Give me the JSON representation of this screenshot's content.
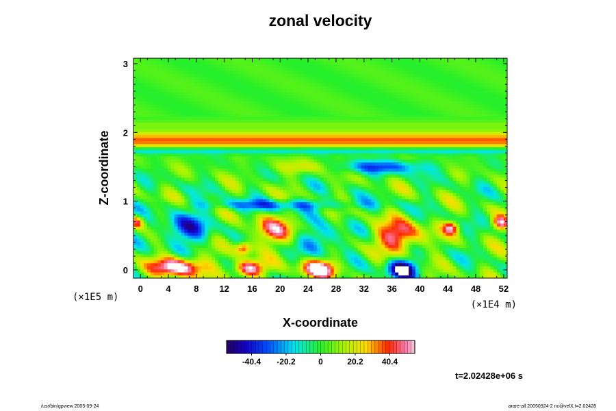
{
  "chart_data": {
    "type": "heatmap",
    "title": "zonal velocity",
    "xlabel": "X-coordinate",
    "ylabel": "Z-coordinate",
    "x_unit": "(×1E4 m)",
    "y_unit": "(×1E5 m)",
    "xlim": [
      -1,
      52.5
    ],
    "ylim": [
      -0.12,
      3.08
    ],
    "x_ticks": [
      "0",
      "4",
      "8",
      "12",
      "16",
      "20",
      "24",
      "28",
      "32",
      "36",
      "40",
      "44",
      "48",
      "52"
    ],
    "y_ticks": [
      "0",
      "1",
      "2",
      "3"
    ],
    "colorbar": {
      "min": -55,
      "max": 55,
      "ticks": [
        "-40.4",
        "-20.2",
        "0",
        "20.2",
        "40.4"
      ],
      "tick_values": [
        -40.4,
        -20.2,
        0,
        20.2,
        40.4
      ]
    },
    "time_label": "t=2.02428e+06 s",
    "features": [
      {
        "kind": "band",
        "z_center": 1.89,
        "z_halfwidth": 0.12,
        "value": 34
      },
      {
        "kind": "band",
        "z_center": 2.12,
        "z_halfwidth": 0.05,
        "value": 6
      },
      {
        "kind": "band",
        "z_center": 1.74,
        "z_halfwidth": 0.05,
        "value": -22
      },
      {
        "kind": "blob",
        "x": 37,
        "z": 0.5,
        "sx": 3.4,
        "sz": 0.22,
        "value": 48
      },
      {
        "kind": "blob",
        "x": 19,
        "z": 0.58,
        "sx": 3.2,
        "sz": 0.2,
        "value": 36
      },
      {
        "kind": "blob",
        "x": 5.5,
        "z": 0.05,
        "sx": 3.8,
        "sz": 0.14,
        "value": 60
      },
      {
        "kind": "blob",
        "x": 15.5,
        "z": 0.02,
        "sx": 2.2,
        "sz": 0.12,
        "value": 60
      },
      {
        "kind": "blob",
        "x": 25.5,
        "z": 0.02,
        "sx": 2.6,
        "sz": 0.13,
        "value": 60
      },
      {
        "kind": "blob",
        "x": 14.8,
        "z": 0.32,
        "sx": 1.1,
        "sz": 0.09,
        "value": 42
      },
      {
        "kind": "blob",
        "x": 37.5,
        "z": 0.02,
        "sx": 2.2,
        "sz": 0.14,
        "value": -60
      },
      {
        "kind": "blob",
        "x": 6.5,
        "z": 0.6,
        "sx": 3.5,
        "sz": 0.22,
        "value": -35
      },
      {
        "kind": "blob",
        "x": 26,
        "z": 0.45,
        "sx": 2.8,
        "sz": 0.2,
        "value": -28
      },
      {
        "kind": "blob",
        "x": 34,
        "z": 1.5,
        "sx": 7,
        "sz": 0.1,
        "value": -32
      },
      {
        "kind": "blob",
        "x": 24,
        "z": 1.5,
        "sx": 5,
        "sz": 0.1,
        "value": 18
      },
      {
        "kind": "blob",
        "x": 20,
        "z": 0.95,
        "sx": 12,
        "sz": 0.08,
        "value": -28
      },
      {
        "kind": "blob",
        "x": 44.5,
        "z": 0.62,
        "sx": 1.1,
        "sz": 0.09,
        "value": 44
      },
      {
        "kind": "blob",
        "x": 51.5,
        "z": 0.68,
        "sx": 1.2,
        "sz": 0.1,
        "value": 44
      },
      {
        "kind": "blob",
        "x": -0.5,
        "z": 0.7,
        "sx": 1.0,
        "sz": 0.09,
        "value": 40
      }
    ]
  },
  "footer": {
    "left": "/usr/bin/gpview 2005-09-24",
    "right": "arare-all 20050924-2 nc@velX,t=2.02428"
  }
}
